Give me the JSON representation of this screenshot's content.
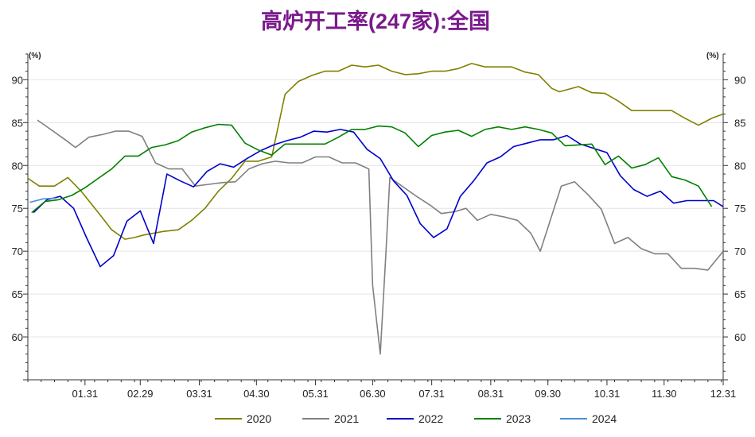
{
  "chart_data": {
    "type": "line",
    "title": "高炉开工率(247家):全国",
    "unit_left": "(%)",
    "unit_right": "(%)",
    "x_ticks": [
      "01.31",
      "02.29",
      "03.31",
      "04.30",
      "05.31",
      "06.30",
      "07.31",
      "08.31",
      "09.30",
      "10.31",
      "11.30",
      "12.31"
    ],
    "x_range": [
      1,
      366
    ],
    "ylim": [
      55,
      93
    ],
    "y_ticks": [
      60,
      65,
      70,
      75,
      80,
      85,
      90
    ],
    "grid": "horizontal",
    "legend_position": "bottom",
    "series": [
      {
        "name": "2020",
        "color": "#808000",
        "points": [
          [
            1,
            78.5
          ],
          [
            7,
            77.6
          ],
          [
            15,
            77.6
          ],
          [
            22,
            78.6
          ],
          [
            29,
            77.0
          ],
          [
            38,
            74.5
          ],
          [
            45,
            72.5
          ],
          [
            52,
            71.4
          ],
          [
            57,
            71.6
          ],
          [
            62,
            71.9
          ],
          [
            72,
            72.3
          ],
          [
            80,
            72.5
          ],
          [
            87,
            73.6
          ],
          [
            94,
            75.0
          ],
          [
            101,
            77.0
          ],
          [
            108,
            78.5
          ],
          [
            115,
            80.5
          ],
          [
            122,
            80.5
          ],
          [
            129,
            81.0
          ],
          [
            136,
            88.3
          ],
          [
            143,
            89.8
          ],
          [
            150,
            90.5
          ],
          [
            157,
            91.0
          ],
          [
            164,
            91.0
          ],
          [
            171,
            91.7
          ],
          [
            178,
            91.5
          ],
          [
            185,
            91.7
          ],
          [
            192,
            91.0
          ],
          [
            199,
            90.6
          ],
          [
            206,
            90.7
          ],
          [
            213,
            91.0
          ],
          [
            220,
            91.0
          ],
          [
            227,
            91.3
          ],
          [
            234,
            91.9
          ],
          [
            241,
            91.5
          ],
          [
            248,
            91.5
          ],
          [
            255,
            91.5
          ],
          [
            262,
            90.9
          ],
          [
            269,
            90.6
          ],
          [
            276,
            89.0
          ],
          [
            280,
            88.6
          ],
          [
            290,
            89.2
          ],
          [
            297,
            88.5
          ],
          [
            304,
            88.4
          ],
          [
            311,
            87.5
          ],
          [
            318,
            86.4
          ],
          [
            325,
            86.4
          ],
          [
            332,
            86.4
          ],
          [
            339,
            86.4
          ],
          [
            346,
            85.5
          ],
          [
            353,
            84.7
          ],
          [
            360,
            85.5
          ],
          [
            366,
            86.0
          ]
        ]
      },
      {
        "name": "2021",
        "color": "#808080",
        "points": [
          [
            6,
            85.3
          ],
          [
            13,
            84.2
          ],
          [
            20,
            83.1
          ],
          [
            26,
            82.1
          ],
          [
            33,
            83.3
          ],
          [
            40,
            83.6
          ],
          [
            47,
            84.0
          ],
          [
            54,
            84.0
          ],
          [
            61,
            83.4
          ],
          [
            68,
            80.3
          ],
          [
            75,
            79.6
          ],
          [
            82,
            79.6
          ],
          [
            89,
            77.6
          ],
          [
            96,
            77.8
          ],
          [
            103,
            78.0
          ],
          [
            110,
            78.1
          ],
          [
            117,
            79.6
          ],
          [
            124,
            80.2
          ],
          [
            131,
            80.5
          ],
          [
            138,
            80.3
          ],
          [
            145,
            80.3
          ],
          [
            152,
            81.0
          ],
          [
            159,
            81.0
          ],
          [
            166,
            80.3
          ],
          [
            173,
            80.3
          ],
          [
            180,
            79.6
          ],
          [
            182,
            66.0
          ],
          [
            186,
            58.0
          ],
          [
            189,
            70.0
          ],
          [
            191,
            78.6
          ],
          [
            198,
            77.5
          ],
          [
            205,
            76.4
          ],
          [
            212,
            75.4
          ],
          [
            218,
            74.4
          ],
          [
            225,
            74.6
          ],
          [
            231,
            75.0
          ],
          [
            237,
            73.6
          ],
          [
            244,
            74.3
          ],
          [
            251,
            74.0
          ],
          [
            258,
            73.6
          ],
          [
            265,
            72.1
          ],
          [
            270,
            70.0
          ],
          [
            281,
            77.6
          ],
          [
            288,
            78.1
          ],
          [
            295,
            76.6
          ],
          [
            302,
            74.9
          ],
          [
            309,
            70.9
          ],
          [
            316,
            71.6
          ],
          [
            323,
            70.3
          ],
          [
            330,
            69.7
          ],
          [
            337,
            69.7
          ],
          [
            344,
            68.0
          ],
          [
            351,
            68.0
          ],
          [
            358,
            67.8
          ],
          [
            366,
            70.0
          ]
        ]
      },
      {
        "name": "2022",
        "color": "#0000cd",
        "points": [
          [
            4,
            74.5
          ],
          [
            11,
            76.0
          ],
          [
            18,
            76.4
          ],
          [
            25,
            75.0
          ],
          [
            32,
            71.5
          ],
          [
            39,
            68.2
          ],
          [
            46,
            69.5
          ],
          [
            53,
            73.5
          ],
          [
            60,
            74.7
          ],
          [
            67,
            70.9
          ],
          [
            74,
            79.0
          ],
          [
            81,
            78.2
          ],
          [
            88,
            77.5
          ],
          [
            95,
            79.3
          ],
          [
            102,
            80.2
          ],
          [
            109,
            79.8
          ],
          [
            116,
            80.8
          ],
          [
            123,
            81.7
          ],
          [
            130,
            82.4
          ],
          [
            137,
            82.9
          ],
          [
            144,
            83.3
          ],
          [
            151,
            84.0
          ],
          [
            158,
            83.9
          ],
          [
            165,
            84.2
          ],
          [
            172,
            83.9
          ],
          [
            179,
            81.9
          ],
          [
            186,
            80.8
          ],
          [
            193,
            78.2
          ],
          [
            200,
            76.5
          ],
          [
            207,
            73.2
          ],
          [
            214,
            71.6
          ],
          [
            221,
            72.6
          ],
          [
            228,
            76.4
          ],
          [
            235,
            78.2
          ],
          [
            242,
            80.3
          ],
          [
            249,
            81.0
          ],
          [
            256,
            82.2
          ],
          [
            263,
            82.6
          ],
          [
            270,
            83.0
          ],
          [
            277,
            83.0
          ],
          [
            284,
            83.5
          ],
          [
            291,
            82.5
          ],
          [
            298,
            82.0
          ],
          [
            305,
            81.5
          ],
          [
            312,
            78.8
          ],
          [
            319,
            77.2
          ],
          [
            326,
            76.4
          ],
          [
            333,
            77.0
          ],
          [
            340,
            75.6
          ],
          [
            347,
            75.9
          ],
          [
            354,
            75.9
          ],
          [
            361,
            75.9
          ],
          [
            366,
            75.2
          ]
        ]
      },
      {
        "name": "2023",
        "color": "#008000",
        "points": [
          [
            3,
            74.5
          ],
          [
            10,
            75.8
          ],
          [
            17,
            76.0
          ],
          [
            24,
            76.5
          ],
          [
            31,
            77.4
          ],
          [
            38,
            78.5
          ],
          [
            45,
            79.6
          ],
          [
            52,
            81.1
          ],
          [
            59,
            81.1
          ],
          [
            66,
            82.1
          ],
          [
            73,
            82.4
          ],
          [
            80,
            82.9
          ],
          [
            87,
            83.9
          ],
          [
            94,
            84.4
          ],
          [
            101,
            84.8
          ],
          [
            108,
            84.7
          ],
          [
            115,
            82.6
          ],
          [
            122,
            81.8
          ],
          [
            129,
            81.2
          ],
          [
            136,
            82.5
          ],
          [
            143,
            82.5
          ],
          [
            150,
            82.5
          ],
          [
            157,
            82.5
          ],
          [
            164,
            83.3
          ],
          [
            171,
            84.2
          ],
          [
            178,
            84.2
          ],
          [
            185,
            84.6
          ],
          [
            192,
            84.5
          ],
          [
            199,
            83.8
          ],
          [
            206,
            82.2
          ],
          [
            213,
            83.5
          ],
          [
            220,
            83.9
          ],
          [
            227,
            84.1
          ],
          [
            234,
            83.4
          ],
          [
            241,
            84.2
          ],
          [
            248,
            84.5
          ],
          [
            255,
            84.2
          ],
          [
            262,
            84.5
          ],
          [
            269,
            84.2
          ],
          [
            276,
            83.8
          ],
          [
            283,
            82.3
          ],
          [
            290,
            82.4
          ],
          [
            297,
            82.5
          ],
          [
            304,
            80.1
          ],
          [
            311,
            81.1
          ],
          [
            318,
            79.7
          ],
          [
            325,
            80.1
          ],
          [
            332,
            80.9
          ],
          [
            339,
            78.7
          ],
          [
            346,
            78.3
          ],
          [
            353,
            77.6
          ],
          [
            360,
            75.2
          ]
        ]
      },
      {
        "name": "2024",
        "color": "#4a90d9",
        "points": [
          [
            2,
            75.7
          ],
          [
            9,
            76.1
          ],
          [
            16,
            76.2
          ]
        ]
      }
    ]
  }
}
